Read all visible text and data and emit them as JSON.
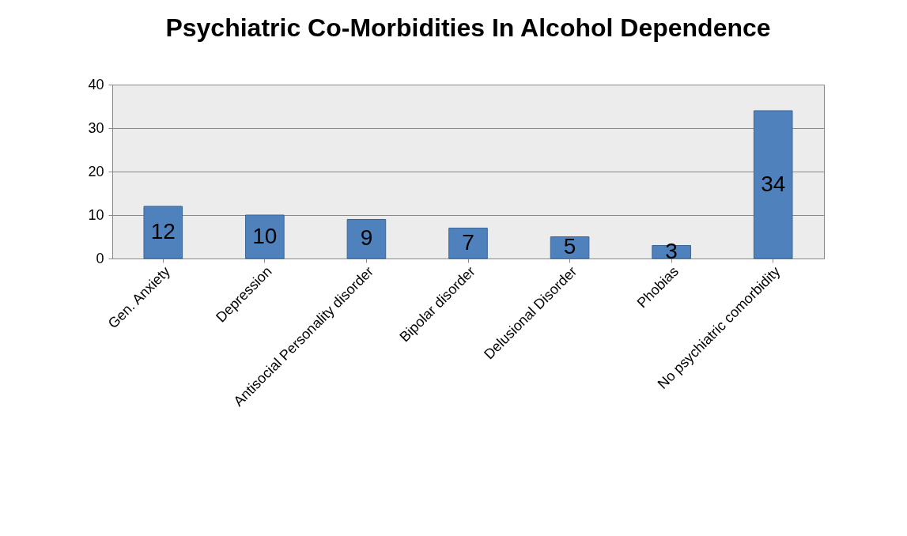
{
  "chart_data": {
    "type": "bar",
    "title": "Psychiatric Co-Morbidities In Alcohol Dependence",
    "categories": [
      "Gen. Anxiety",
      "Depression",
      "Antisocial Personality disorder",
      "Bipolar disorder",
      "Delusional Disorder",
      "Phobias",
      "No psychiatric comorbidity"
    ],
    "values": [
      12,
      10,
      9,
      7,
      5,
      3,
      34
    ],
    "color": "#4f81bd",
    "ylim": [
      0,
      40
    ],
    "yticks": [
      0,
      10,
      20,
      30,
      40
    ],
    "grid": "y",
    "data_labels": true
  }
}
